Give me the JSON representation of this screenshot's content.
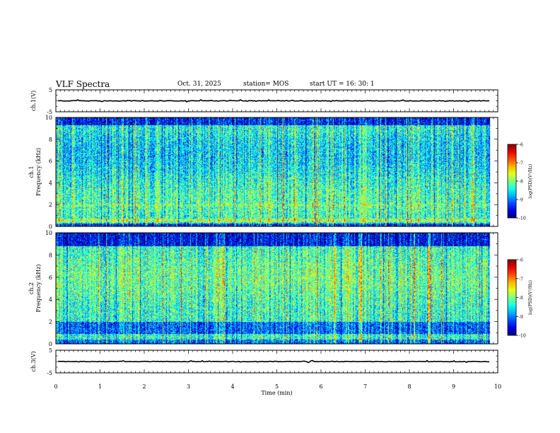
{
  "header": {
    "title": "VLF Spectra",
    "date": "Oct. 31, 2025",
    "station": "station= MOS",
    "start": "start  UT =   16: 30: 1"
  },
  "chart_data": [
    {
      "type": "line",
      "name": "ch.1 waveform",
      "ylabel": "ch.1(V)",
      "ylim": [
        -5,
        5
      ],
      "yticks": [
        "5",
        "-5"
      ],
      "xlim": [
        0,
        10
      ],
      "level": 0
    },
    {
      "type": "heatmap",
      "name": "ch.1 spectrogram",
      "ylabel": "ch.1\nFrequency (kHz)",
      "ylim": [
        0,
        10
      ],
      "yticks": [
        "0",
        "2",
        "4",
        "6",
        "8",
        "10"
      ],
      "xlim": [
        0,
        10
      ],
      "data_end_min": 9.82,
      "colorbar": {
        "label": "log(PSD)(V²/Hz)",
        "range": [
          -10,
          -6
        ],
        "ticks": [
          "-6",
          "-7",
          "-8",
          "-9",
          "-10"
        ]
      }
    },
    {
      "type": "heatmap",
      "name": "ch.2 spectrogram",
      "ylabel": "ch.2\nFrequency (kHz)",
      "ylim": [
        0,
        10
      ],
      "yticks": [
        "0",
        "2",
        "4",
        "6",
        "8",
        "10"
      ],
      "xlim": [
        0,
        10
      ],
      "data_end_min": 9.82,
      "colorbar": {
        "label": "log(PSD)(V²/Hz)",
        "range": [
          -10,
          -6
        ],
        "ticks": [
          "-6",
          "-7",
          "-8",
          "-9",
          "-10"
        ]
      }
    },
    {
      "type": "line",
      "name": "ch.3 waveform",
      "ylabel": "ch.3(V)",
      "ylim": [
        -5,
        5
      ],
      "yticks": [
        "5",
        "-5"
      ],
      "xlim": [
        0,
        10
      ],
      "level": 0
    }
  ],
  "xaxis": {
    "label": "Time  (min)",
    "ticks": [
      "0",
      "1",
      "2",
      "3",
      "4",
      "5",
      "6",
      "7",
      "8",
      "9",
      "10"
    ]
  }
}
